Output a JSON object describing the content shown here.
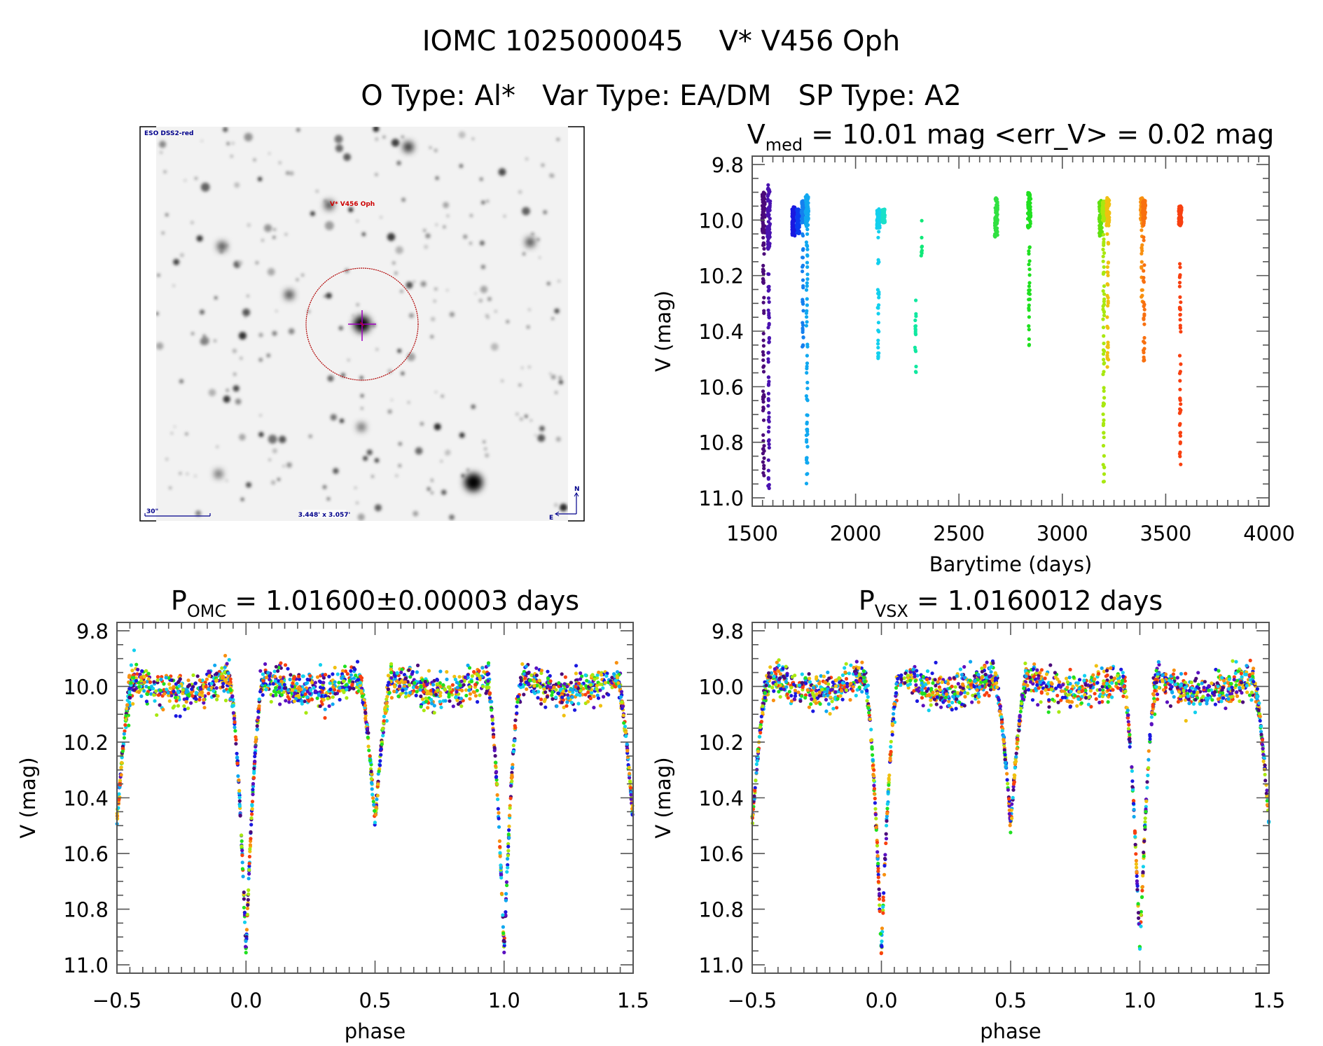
{
  "header": {
    "title_line1": "IOMC 1025000045    V* V456 Oph",
    "title_line2": "O Type: Al*   Var Type: EA/DM   SP Type: A2"
  },
  "sky_image": {
    "survey_label": "ESO DSS2-red",
    "target_label": "V* V456 Oph",
    "scale_bar_label": "30\"",
    "field_size_label": "3.448' x 3.057'",
    "compass_north": "N",
    "compass_east": "E",
    "label_color": "#00008b",
    "target_color": "#cc0000",
    "crosshair_color": "#a000c0"
  },
  "chart_data": [
    {
      "id": "lightcurve",
      "type": "scatter",
      "title_main": "V",
      "title_sub": "med",
      "title_rest": " = 10.01 mag <err_V> = 0.02 mag",
      "xlabel": "Barytime (days)",
      "ylabel": "V (mag)",
      "xlim": [
        1500,
        4000
      ],
      "ylim": [
        9.77,
        11.03
      ],
      "y_inverted": true,
      "x_ticks": [
        "1500",
        "2000",
        "2500",
        "3000",
        "3500",
        "4000"
      ],
      "x_tick_values": [
        1500,
        2000,
        2500,
        3000,
        3500,
        4000
      ],
      "y_ticks": [
        "9.8",
        "10.0",
        "10.2",
        "10.4",
        "10.6",
        "10.8",
        "11.0"
      ],
      "y_tick_values": [
        9.8,
        10.0,
        10.2,
        10.4,
        10.6,
        10.8,
        11.0
      ],
      "grid": false,
      "clusters": [
        {
          "x": 1555,
          "dense_range": [
            9.9,
            10.05
          ],
          "sparse_range": [
            10.05,
            10.98
          ],
          "color": "#4b0a7a"
        },
        {
          "x": 1580,
          "dense_range": [
            9.87,
            10.1
          ],
          "sparse_range": [
            10.1,
            10.97
          ],
          "color": "#4a12b0"
        },
        {
          "x": 1700,
          "dense_range": [
            9.95,
            10.06
          ],
          "sparse_range": null,
          "color": "#1a18e0"
        },
        {
          "x": 1722,
          "dense_range": [
            9.96,
            10.05
          ],
          "sparse_range": null,
          "color": "#0a3cf0"
        },
        {
          "x": 1745,
          "dense_range": [
            9.93,
            10.01
          ],
          "sparse_range": [
            10.05,
            10.5
          ],
          "color": "#1480ee"
        },
        {
          "x": 1765,
          "dense_range": [
            9.91,
            10.02
          ],
          "sparse_range": [
            10.02,
            10.96
          ],
          "color": "#10a8f0"
        },
        {
          "x": 2110,
          "dense_range": [
            9.96,
            10.03
          ],
          "sparse_range": [
            10.03,
            10.5
          ],
          "color": "#12d0ee"
        },
        {
          "x": 2135,
          "dense_range": [
            9.96,
            10.01
          ],
          "sparse_range": null,
          "color": "#1ae0c8"
        },
        {
          "x": 2290,
          "dense_range": null,
          "sparse_range": [
            10.28,
            10.56
          ],
          "color": "#10e8a0"
        },
        {
          "x": 2320,
          "dense_range": null,
          "sparse_range": [
            10.0,
            10.14
          ],
          "color": "#10e878"
        },
        {
          "x": 2680,
          "dense_range": [
            9.92,
            10.06
          ],
          "sparse_range": null,
          "color": "#30e040"
        },
        {
          "x": 2840,
          "dense_range": [
            9.9,
            10.03
          ],
          "sparse_range": [
            10.03,
            10.46
          ],
          "color": "#20e020"
        },
        {
          "x": 3185,
          "dense_range": [
            9.93,
            10.06
          ],
          "sparse_range": null,
          "color": "#60e010"
        },
        {
          "x": 3200,
          "dense_range": [
            9.93,
            10.0
          ],
          "sparse_range": [
            10.0,
            10.98
          ],
          "color": "#a8e810"
        },
        {
          "x": 3220,
          "dense_range": [
            9.92,
            10.02
          ],
          "sparse_range": [
            10.02,
            10.55
          ],
          "color": "#f0c010"
        },
        {
          "x": 3385,
          "dense_range": [
            9.92,
            10.0
          ],
          "sparse_range": [
            10.0,
            10.3
          ],
          "color": "#f89010"
        },
        {
          "x": 3395,
          "dense_range": [
            9.93,
            10.0
          ],
          "sparse_range": [
            10.0,
            10.51
          ],
          "color": "#f87010"
        },
        {
          "x": 3570,
          "dense_range": [
            9.95,
            10.02
          ],
          "sparse_range": [
            10.15,
            10.88
          ],
          "color": "#f84010"
        }
      ]
    },
    {
      "id": "phase_omc",
      "type": "scatter",
      "title_main": "P",
      "title_sub": "OMC",
      "title_rest": " = 1.01600±0.00003 days",
      "xlabel": "phase",
      "ylabel": "V (mag)",
      "xlim": [
        -0.5,
        1.5
      ],
      "ylim": [
        9.77,
        11.03
      ],
      "y_inverted": true,
      "x_ticks": [
        "−0.5",
        "0.0",
        "0.5",
        "1.0",
        "1.5"
      ],
      "x_tick_values": [
        -0.5,
        0.0,
        0.5,
        1.0,
        1.5
      ],
      "y_ticks": [
        "9.8",
        "10.0",
        "10.2",
        "10.4",
        "10.6",
        "10.8",
        "11.0"
      ],
      "y_tick_values": [
        9.8,
        10.0,
        10.2,
        10.4,
        10.6,
        10.8,
        11.0
      ],
      "grid": false,
      "curve_model": {
        "out_of_eclipse_V": 9.99,
        "scatter_mag": 0.03,
        "primary_min": {
          "phase": 0.0,
          "V": 10.98,
          "half_width": 0.07
        },
        "secondary_min": {
          "phase": 0.5,
          "V": 10.52,
          "half_width": 0.065
        }
      },
      "samples": [
        {
          "phase": -0.5,
          "V": 10.5
        },
        {
          "phase": -0.45,
          "V": 10.22
        },
        {
          "phase": -0.4,
          "V": 10.03
        },
        {
          "phase": -0.3,
          "V": 9.97
        },
        {
          "phase": -0.2,
          "V": 9.96
        },
        {
          "phase": -0.1,
          "V": 10.0
        },
        {
          "phase": -0.06,
          "V": 10.15
        },
        {
          "phase": -0.03,
          "V": 10.55
        },
        {
          "phase": 0.0,
          "V": 10.98
        },
        {
          "phase": 0.03,
          "V": 10.55
        },
        {
          "phase": 0.06,
          "V": 10.15
        },
        {
          "phase": 0.1,
          "V": 10.0
        },
        {
          "phase": 0.2,
          "V": 9.97
        },
        {
          "phase": 0.3,
          "V": 9.96
        },
        {
          "phase": 0.4,
          "V": 10.0
        },
        {
          "phase": 0.45,
          "V": 10.2
        },
        {
          "phase": 0.5,
          "V": 10.52
        },
        {
          "phase": 0.55,
          "V": 10.2
        },
        {
          "phase": 0.6,
          "V": 10.02
        },
        {
          "phase": 0.7,
          "V": 9.97
        },
        {
          "phase": 0.8,
          "V": 9.96
        },
        {
          "phase": 0.9,
          "V": 10.0
        },
        {
          "phase": 1.0,
          "V": 10.98
        },
        {
          "phase": 1.1,
          "V": 10.0
        },
        {
          "phase": 1.3,
          "V": 9.96
        },
        {
          "phase": 1.45,
          "V": 10.2
        },
        {
          "phase": 1.5,
          "V": 10.5
        }
      ]
    },
    {
      "id": "phase_vsx",
      "type": "scatter",
      "title_main": "P",
      "title_sub": "VSX",
      "title_rest": " = 1.0160012 days",
      "xlabel": "phase",
      "ylabel": "V (mag)",
      "xlim": [
        -0.5,
        1.5
      ],
      "ylim": [
        9.77,
        11.03
      ],
      "y_inverted": true,
      "x_ticks": [
        "−0.5",
        "0.0",
        "0.5",
        "1.0",
        "1.5"
      ],
      "x_tick_values": [
        -0.5,
        0.0,
        0.5,
        1.0,
        1.5
      ],
      "y_ticks": [
        "9.8",
        "10.0",
        "10.2",
        "10.4",
        "10.6",
        "10.8",
        "11.0"
      ],
      "y_tick_values": [
        9.8,
        10.0,
        10.2,
        10.4,
        10.6,
        10.8,
        11.0
      ],
      "grid": false,
      "curve_model": {
        "out_of_eclipse_V": 9.99,
        "scatter_mag": 0.03,
        "primary_min": {
          "phase": 0.0,
          "V": 10.98,
          "half_width": 0.07
        },
        "secondary_min": {
          "phase": 0.5,
          "V": 10.53,
          "half_width": 0.065
        }
      },
      "samples": [
        {
          "phase": -0.5,
          "V": 10.5
        },
        {
          "phase": -0.45,
          "V": 10.22
        },
        {
          "phase": -0.4,
          "V": 10.03
        },
        {
          "phase": -0.3,
          "V": 9.97
        },
        {
          "phase": -0.2,
          "V": 9.96
        },
        {
          "phase": -0.1,
          "V": 10.0
        },
        {
          "phase": 0.0,
          "V": 10.98
        },
        {
          "phase": 0.1,
          "V": 10.0
        },
        {
          "phase": 0.3,
          "V": 9.96
        },
        {
          "phase": 0.45,
          "V": 10.2
        },
        {
          "phase": 0.5,
          "V": 10.53
        },
        {
          "phase": 0.55,
          "V": 10.2
        },
        {
          "phase": 0.7,
          "V": 9.97
        },
        {
          "phase": 1.0,
          "V": 10.98
        },
        {
          "phase": 1.5,
          "V": 10.5
        }
      ]
    }
  ],
  "phase_palette": [
    "#4b0a7a",
    "#5a10c0",
    "#1a18e0",
    "#10a8f0",
    "#12d0ee",
    "#20e020",
    "#a8e810",
    "#f0c010",
    "#f89010",
    "#f84010",
    "#300030"
  ]
}
